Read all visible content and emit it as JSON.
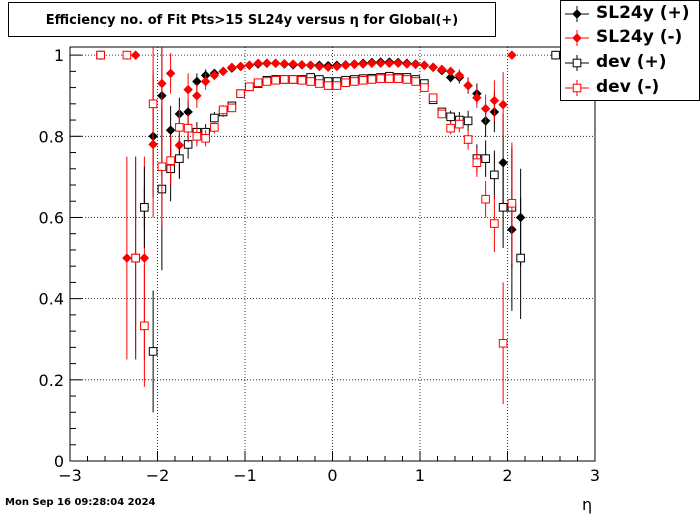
{
  "title": "Efficiency no. of Fit Pts>15 SL24y versus η for Global(+)",
  "timestamp": "Mon Sep 16 09:28:04 2024",
  "chart_data": {
    "type": "scatter",
    "xlabel": "η",
    "ylabel": "",
    "xlim": [
      -3,
      3
    ],
    "ylim": [
      0,
      1.02
    ],
    "xticks": [
      "−3",
      "−2",
      "−1",
      "0",
      "1",
      "2",
      "3"
    ],
    "yticks": [
      "0",
      "0.2",
      "0.4",
      "0.6",
      "0.8",
      "1"
    ],
    "grid": true,
    "legend_position": "top-right",
    "series": [
      {
        "name": "SL24y (+)",
        "color": "#000000",
        "marker": "filled-diamond",
        "points": [
          [
            -2.65,
            1.0,
            0
          ],
          [
            -2.15,
            0.625,
            0.05
          ],
          [
            -2.05,
            0.8,
            0.15
          ],
          [
            -1.95,
            0.9,
            0.2
          ],
          [
            -1.85,
            0.815,
            0.06
          ],
          [
            -1.75,
            0.855,
            0.04
          ],
          [
            -1.65,
            0.86,
            0.03
          ],
          [
            -1.55,
            0.935,
            0.02
          ],
          [
            -1.45,
            0.95,
            0.015
          ],
          [
            -1.35,
            0.955,
            0.01
          ],
          [
            -1.25,
            0.96,
            0.008
          ],
          [
            -1.15,
            0.968,
            0.006
          ],
          [
            -1.05,
            0.972,
            0.005
          ],
          [
            -0.95,
            0.975,
            0.004
          ],
          [
            -0.85,
            0.978,
            0.004
          ],
          [
            -0.75,
            0.98,
            0.004
          ],
          [
            -0.65,
            0.98,
            0.004
          ],
          [
            -0.55,
            0.978,
            0.004
          ],
          [
            -0.45,
            0.976,
            0.004
          ],
          [
            -0.35,
            0.976,
            0.004
          ],
          [
            -0.25,
            0.975,
            0.004
          ],
          [
            -0.15,
            0.975,
            0.004
          ],
          [
            -0.05,
            0.974,
            0.004
          ],
          [
            0.05,
            0.975,
            0.004
          ],
          [
            0.15,
            0.976,
            0.004
          ],
          [
            0.25,
            0.978,
            0.004
          ],
          [
            0.35,
            0.98,
            0.004
          ],
          [
            0.45,
            0.982,
            0.004
          ],
          [
            0.55,
            0.983,
            0.004
          ],
          [
            0.65,
            0.983,
            0.004
          ],
          [
            0.75,
            0.982,
            0.004
          ],
          [
            0.85,
            0.98,
            0.004
          ],
          [
            0.95,
            0.978,
            0.004
          ],
          [
            1.05,
            0.975,
            0.005
          ],
          [
            1.15,
            0.97,
            0.006
          ],
          [
            1.25,
            0.962,
            0.008
          ],
          [
            1.35,
            0.945,
            0.012
          ],
          [
            1.45,
            0.945,
            0.015
          ],
          [
            1.55,
            0.925,
            0.02
          ],
          [
            1.65,
            0.905,
            0.025
          ],
          [
            1.75,
            0.838,
            0.04
          ],
          [
            1.85,
            0.86,
            0.05
          ],
          [
            1.95,
            0.735,
            0.12
          ],
          [
            2.05,
            0.57,
            0.2
          ],
          [
            2.15,
            0.6,
            0.12
          ],
          [
            2.55,
            1.0,
            0
          ]
        ]
      },
      {
        "name": "SL24y (-)",
        "color": "#ff0000",
        "marker": "filled-diamond",
        "points": [
          [
            -2.65,
            1.0,
            0
          ],
          [
            -2.35,
            1.0,
            0
          ],
          [
            -2.25,
            1.0,
            0
          ],
          [
            -2.35,
            0.5,
            0.25
          ],
          [
            -2.15,
            0.5,
            0.25
          ],
          [
            -2.05,
            0.78,
            0.18
          ],
          [
            -1.95,
            0.93,
            0.15
          ],
          [
            -1.85,
            0.955,
            0.05
          ],
          [
            -1.75,
            0.778,
            0.08
          ],
          [
            -1.65,
            0.915,
            0.04
          ],
          [
            -1.55,
            0.9,
            0.03
          ],
          [
            -1.45,
            0.935,
            0.02
          ],
          [
            -1.35,
            0.95,
            0.012
          ],
          [
            -1.25,
            0.96,
            0.009
          ],
          [
            -1.15,
            0.97,
            0.007
          ],
          [
            -1.05,
            0.972,
            0.005
          ],
          [
            -0.95,
            0.975,
            0.005
          ],
          [
            -0.85,
            0.98,
            0.004
          ],
          [
            -0.75,
            0.98,
            0.004
          ],
          [
            -0.65,
            0.98,
            0.004
          ],
          [
            -0.55,
            0.979,
            0.004
          ],
          [
            -0.45,
            0.978,
            0.004
          ],
          [
            -0.35,
            0.976,
            0.004
          ],
          [
            -0.25,
            0.975,
            0.004
          ],
          [
            -0.15,
            0.972,
            0.004
          ],
          [
            -0.05,
            0.97,
            0.004
          ],
          [
            0.05,
            0.972,
            0.004
          ],
          [
            0.15,
            0.975,
            0.004
          ],
          [
            0.25,
            0.977,
            0.004
          ],
          [
            0.35,
            0.978,
            0.004
          ],
          [
            0.45,
            0.98,
            0.004
          ],
          [
            0.55,
            0.98,
            0.004
          ],
          [
            0.65,
            0.98,
            0.004
          ],
          [
            0.75,
            0.98,
            0.004
          ],
          [
            0.85,
            0.978,
            0.004
          ],
          [
            0.95,
            0.977,
            0.004
          ],
          [
            1.05,
            0.975,
            0.005
          ],
          [
            1.15,
            0.97,
            0.006
          ],
          [
            1.25,
            0.965,
            0.008
          ],
          [
            1.35,
            0.96,
            0.01
          ],
          [
            1.45,
            0.95,
            0.015
          ],
          [
            1.55,
            0.925,
            0.02
          ],
          [
            1.65,
            0.895,
            0.025
          ],
          [
            1.75,
            0.868,
            0.035
          ],
          [
            1.85,
            0.888,
            0.05
          ],
          [
            1.95,
            0.878,
            0.08
          ],
          [
            2.05,
            1.0,
            0
          ]
        ]
      },
      {
        "name": "dev (+)",
        "color": "#000000",
        "marker": "open-square",
        "points": [
          [
            -2.65,
            1.0,
            0
          ],
          [
            -2.25,
            0.5,
            0.25
          ],
          [
            -2.15,
            0.625,
            0.1
          ],
          [
            -2.05,
            0.27,
            0.15
          ],
          [
            -1.95,
            0.67,
            0.2
          ],
          [
            -1.85,
            0.72,
            0.08
          ],
          [
            -1.75,
            0.745,
            0.05
          ],
          [
            -1.65,
            0.78,
            0.035
          ],
          [
            -1.55,
            0.81,
            0.025
          ],
          [
            -1.45,
            0.81,
            0.02
          ],
          [
            -1.35,
            0.845,
            0.015
          ],
          [
            -1.25,
            0.86,
            0.012
          ],
          [
            -1.15,
            0.875,
            0.01
          ],
          [
            -1.05,
            0.905,
            0.008
          ],
          [
            -0.95,
            0.922,
            0.006
          ],
          [
            -0.85,
            0.93,
            0.005
          ],
          [
            -0.75,
            0.938,
            0.005
          ],
          [
            -0.65,
            0.94,
            0.005
          ],
          [
            -0.55,
            0.94,
            0.005
          ],
          [
            -0.45,
            0.94,
            0.005
          ],
          [
            -0.35,
            0.94,
            0.005
          ],
          [
            -0.25,
            0.945,
            0.005
          ],
          [
            -0.15,
            0.94,
            0.005
          ],
          [
            -0.05,
            0.935,
            0.005
          ],
          [
            0.05,
            0.935,
            0.005
          ],
          [
            0.15,
            0.938,
            0.005
          ],
          [
            0.25,
            0.94,
            0.005
          ],
          [
            0.35,
            0.942,
            0.005
          ],
          [
            0.45,
            0.943,
            0.005
          ],
          [
            0.55,
            0.945,
            0.005
          ],
          [
            0.65,
            0.948,
            0.005
          ],
          [
            0.75,
            0.945,
            0.005
          ],
          [
            0.85,
            0.945,
            0.005
          ],
          [
            0.95,
            0.94,
            0.005
          ],
          [
            1.05,
            0.93,
            0.006
          ],
          [
            1.15,
            0.89,
            0.008
          ],
          [
            1.25,
            0.86,
            0.01
          ],
          [
            1.35,
            0.848,
            0.015
          ],
          [
            1.45,
            0.84,
            0.02
          ],
          [
            1.55,
            0.838,
            0.025
          ],
          [
            1.65,
            0.745,
            0.035
          ],
          [
            1.75,
            0.745,
            0.045
          ],
          [
            1.85,
            0.705,
            0.06
          ],
          [
            1.95,
            0.625,
            0.1
          ],
          [
            2.05,
            0.625,
            0.15
          ],
          [
            2.15,
            0.5,
            0.15
          ],
          [
            2.55,
            1.0,
            0
          ]
        ]
      },
      {
        "name": "dev (-)",
        "color": "#ff0000",
        "marker": "open-square",
        "points": [
          [
            -2.65,
            1.0,
            0
          ],
          [
            -2.35,
            1.0,
            0
          ],
          [
            -2.25,
            0.5,
            0.25
          ],
          [
            -2.15,
            0.333,
            0.15
          ],
          [
            -2.05,
            0.88,
            0.15
          ],
          [
            -1.95,
            0.725,
            0.15
          ],
          [
            -1.85,
            0.74,
            0.06
          ],
          [
            -1.75,
            0.822,
            0.05
          ],
          [
            -1.65,
            0.82,
            0.035
          ],
          [
            -1.55,
            0.8,
            0.025
          ],
          [
            -1.45,
            0.795,
            0.02
          ],
          [
            -1.35,
            0.822,
            0.015
          ],
          [
            -1.25,
            0.865,
            0.012
          ],
          [
            -1.15,
            0.87,
            0.01
          ],
          [
            -1.05,
            0.905,
            0.008
          ],
          [
            -0.95,
            0.922,
            0.006
          ],
          [
            -0.85,
            0.932,
            0.005
          ],
          [
            -0.75,
            0.935,
            0.005
          ],
          [
            -0.65,
            0.938,
            0.005
          ],
          [
            -0.55,
            0.94,
            0.005
          ],
          [
            -0.45,
            0.94,
            0.005
          ],
          [
            -0.35,
            0.938,
            0.005
          ],
          [
            -0.25,
            0.935,
            0.005
          ],
          [
            -0.15,
            0.93,
            0.005
          ],
          [
            -0.05,
            0.925,
            0.005
          ],
          [
            0.05,
            0.925,
            0.005
          ],
          [
            0.15,
            0.932,
            0.005
          ],
          [
            0.25,
            0.935,
            0.005
          ],
          [
            0.35,
            0.938,
            0.005
          ],
          [
            0.45,
            0.94,
            0.005
          ],
          [
            0.55,
            0.942,
            0.005
          ],
          [
            0.65,
            0.942,
            0.005
          ],
          [
            0.75,
            0.942,
            0.005
          ],
          [
            0.85,
            0.94,
            0.005
          ],
          [
            0.95,
            0.935,
            0.005
          ],
          [
            1.05,
            0.92,
            0.006
          ],
          [
            1.15,
            0.895,
            0.008
          ],
          [
            1.25,
            0.855,
            0.01
          ],
          [
            1.35,
            0.82,
            0.015
          ],
          [
            1.45,
            0.83,
            0.02
          ],
          [
            1.55,
            0.792,
            0.025
          ],
          [
            1.65,
            0.735,
            0.035
          ],
          [
            1.75,
            0.645,
            0.045
          ],
          [
            1.85,
            0.585,
            0.07
          ],
          [
            1.95,
            0.29,
            0.15
          ],
          [
            2.05,
            0.635,
            0.15
          ]
        ]
      }
    ]
  }
}
